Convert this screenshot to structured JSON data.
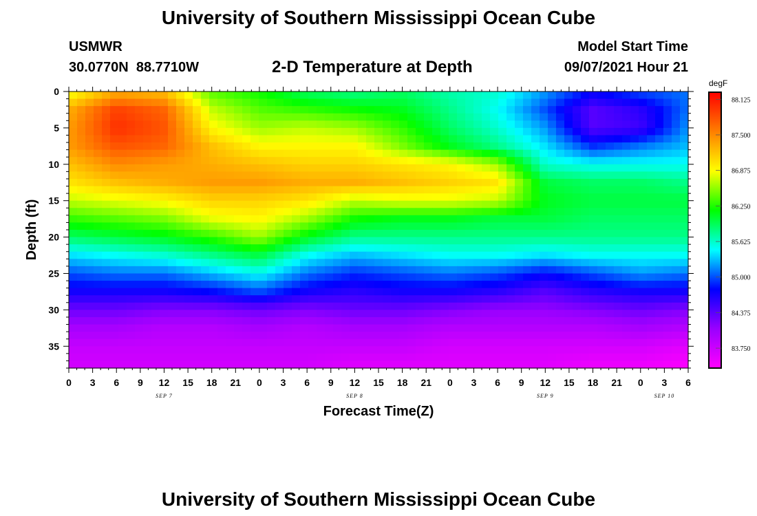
{
  "header": {
    "title": "University of Southern Mississippi Ocean Cube",
    "station": "USMWR",
    "coords": "30.0770N  88.7710W",
    "subtitle": "2-D Temperature at Depth",
    "model_label": "Model Start Time",
    "model_time": "09/07/2021 Hour 21"
  },
  "footer": {
    "title": "University of Southern Mississippi Ocean Cube"
  },
  "colors": {
    "palette": [
      "#ff00ff",
      "#9900ff",
      "#0000ff",
      "#00ffff",
      "#00ff00",
      "#ffff00",
      "#ff7f00",
      "#ff0000"
    ]
  },
  "chart_data": {
    "type": "heatmap",
    "title": "2-D Temperature at Depth",
    "xlabel": "Forecast Time(Z)",
    "ylabel": "Depth (ft)",
    "x_tick_labels": [
      "0",
      "3",
      "6",
      "9",
      "12",
      "15",
      "18",
      "21",
      "0",
      "3",
      "6",
      "9",
      "12",
      "15",
      "18",
      "21",
      "0",
      "3",
      "6",
      "9",
      "12",
      "15",
      "18",
      "21",
      "0",
      "3",
      "6"
    ],
    "x_range_hours": [
      0,
      78
    ],
    "date_labels": [
      {
        "text": "SEP 7",
        "hour": 12
      },
      {
        "text": "SEP 8",
        "hour": 36
      },
      {
        "text": "SEP 9",
        "hour": 60
      },
      {
        "text": "SEP 10",
        "hour": 75
      }
    ],
    "y_ticks": [
      0,
      5,
      10,
      15,
      20,
      25,
      30,
      35
    ],
    "y_range": [
      0,
      38
    ],
    "y_inverted": true,
    "colorbar": {
      "unit": "degF",
      "min": 83.4,
      "max": 88.25,
      "labels": [
        "88.125",
        "87.500",
        "86.875",
        "86.250",
        "85.625",
        "85.000",
        "84.375",
        "83.750"
      ]
    },
    "time_hours": [
      0,
      6,
      12,
      18,
      24,
      30,
      36,
      42,
      48,
      54,
      60,
      66,
      72,
      78
    ],
    "depths_ft": [
      0,
      2.5,
      5,
      7.5,
      10,
      12.5,
      15,
      17.5,
      20,
      22.5,
      25,
      27.5,
      30,
      32.5,
      35,
      38
    ],
    "temperature_degF": [
      [
        86.8,
        87.3,
        87.2,
        86.4,
        86.2,
        85.9,
        85.8,
        85.9,
        85.7,
        85.6,
        85.2,
        84.8,
        85.0,
        85.1
      ],
      [
        87.3,
        87.9,
        87.7,
        86.7,
        86.4,
        86.3,
        86.2,
        86.1,
        85.8,
        85.5,
        85.0,
        84.4,
        84.6,
        85.1
      ],
      [
        87.4,
        88.0,
        87.8,
        86.9,
        86.6,
        86.7,
        86.6,
        86.3,
        85.9,
        85.6,
        85.2,
        84.4,
        84.5,
        85.2
      ],
      [
        87.4,
        87.8,
        87.7,
        87.2,
        86.9,
        86.9,
        86.9,
        86.5,
        86.1,
        85.8,
        85.4,
        84.9,
        85.1,
        85.3
      ],
      [
        87.2,
        87.5,
        87.4,
        87.3,
        87.2,
        87.1,
        87.1,
        87.0,
        86.9,
        86.6,
        85.6,
        85.5,
        85.5,
        85.5
      ],
      [
        87.0,
        87.2,
        87.3,
        87.4,
        87.4,
        87.3,
        87.3,
        87.2,
        87.1,
        87.0,
        86.0,
        85.9,
        85.9,
        85.8
      ],
      [
        86.7,
        86.8,
        86.9,
        87.1,
        87.1,
        87.0,
        86.7,
        86.8,
        86.8,
        86.7,
        86.1,
        86.0,
        86.0,
        86.0
      ],
      [
        86.3,
        86.4,
        86.5,
        86.8,
        86.9,
        86.6,
        86.2,
        86.1,
        86.1,
        86.0,
        86.0,
        85.9,
        85.9,
        85.9
      ],
      [
        85.9,
        86.0,
        86.1,
        86.3,
        86.6,
        86.1,
        85.8,
        85.8,
        85.8,
        85.8,
        85.8,
        85.8,
        85.8,
        85.8
      ],
      [
        85.4,
        85.5,
        85.6,
        85.8,
        86.0,
        85.5,
        85.3,
        85.4,
        85.5,
        85.5,
        85.4,
        85.5,
        85.5,
        85.5
      ],
      [
        85.0,
        85.1,
        85.1,
        85.3,
        85.5,
        85.1,
        84.9,
        85.0,
        85.1,
        85.0,
        84.8,
        85.0,
        85.2,
        85.1
      ],
      [
        84.7,
        84.7,
        84.7,
        84.8,
        85.0,
        84.7,
        84.6,
        84.7,
        84.7,
        84.6,
        84.4,
        84.6,
        84.7,
        84.7
      ],
      [
        84.3,
        84.3,
        84.2,
        84.2,
        84.3,
        84.2,
        84.3,
        84.3,
        84.2,
        84.1,
        84.1,
        84.2,
        84.3,
        84.2
      ],
      [
        84.0,
        84.0,
        83.9,
        83.9,
        84.0,
        83.9,
        84.0,
        84.0,
        83.9,
        83.9,
        83.9,
        83.9,
        84.0,
        83.9
      ],
      [
        83.8,
        83.8,
        83.8,
        83.8,
        83.8,
        83.8,
        83.8,
        83.8,
        83.7,
        83.7,
        83.7,
        83.7,
        83.7,
        83.6
      ],
      [
        83.7,
        83.7,
        83.7,
        83.7,
        83.7,
        83.7,
        83.6,
        83.6,
        83.6,
        83.6,
        83.6,
        83.5,
        83.5,
        83.4
      ]
    ]
  }
}
